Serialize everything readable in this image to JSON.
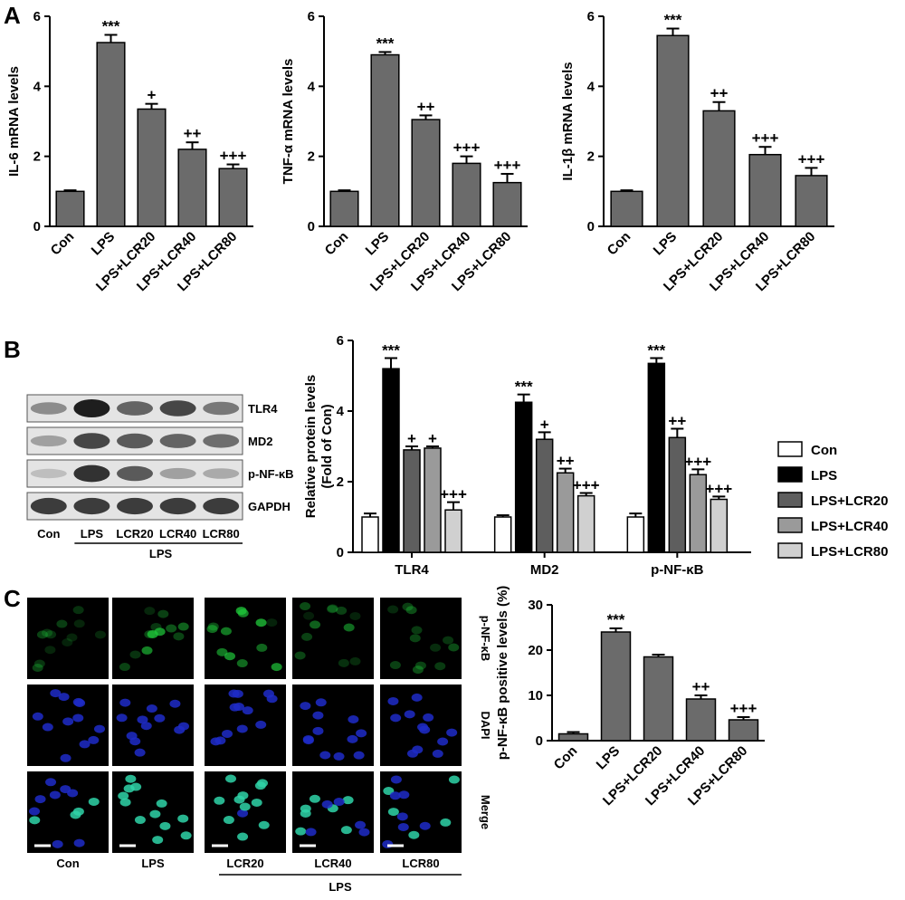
{
  "panel_labels": [
    "A",
    "B",
    "C"
  ],
  "colors": {
    "bar": "#6b6b6b",
    "dark": "#000000",
    "mid": "#5e5e5e",
    "light": "#9a9a9a",
    "lighter": "#d0d0d0",
    "white": "#ffffff",
    "green": "#1fc83a",
    "blue": "#1f2cc8"
  },
  "chart_data": [
    {
      "type": "bar",
      "ylabel": "IL-6 mRNA levels",
      "categories": [
        "Con",
        "LPS",
        "LPS+LCR20",
        "LPS+LCR40",
        "LPS+LCR80"
      ],
      "values": [
        1.0,
        5.25,
        3.35,
        2.2,
        1.65
      ],
      "errors": [
        0.03,
        0.22,
        0.15,
        0.2,
        0.12
      ],
      "annotations": [
        "",
        "***",
        "+",
        "++",
        "+++"
      ],
      "ylim": [
        0,
        6
      ],
      "yticks": [
        0,
        2,
        4,
        6
      ]
    },
    {
      "type": "bar",
      "ylabel": "TNF-α mRNA levels",
      "categories": [
        "Con",
        "LPS",
        "LPS+LCR20",
        "LPS+LCR40",
        "LPS+LCR80"
      ],
      "values": [
        1.0,
        4.9,
        3.05,
        1.8,
        1.25
      ],
      "errors": [
        0.03,
        0.08,
        0.12,
        0.2,
        0.25
      ],
      "annotations": [
        "",
        "***",
        "++",
        "+++",
        "+++"
      ],
      "ylim": [
        0,
        6
      ],
      "yticks": [
        0,
        2,
        4,
        6
      ]
    },
    {
      "type": "bar",
      "ylabel": "IL-1β mRNA levels",
      "categories": [
        "Con",
        "LPS",
        "LPS+LCR20",
        "LPS+LCR40",
        "LPS+LCR80"
      ],
      "values": [
        1.0,
        5.45,
        3.3,
        2.05,
        1.45
      ],
      "errors": [
        0.03,
        0.2,
        0.25,
        0.22,
        0.22
      ],
      "annotations": [
        "",
        "***",
        "++",
        "+++",
        "+++"
      ],
      "ylim": [
        0,
        6
      ],
      "yticks": [
        0,
        2,
        4,
        6
      ]
    },
    {
      "type": "bar",
      "ylabel": "Relative protein levels (Fold of Con)",
      "ylabel_lines": [
        "Relative protein levels",
        "(Fold of Con)"
      ],
      "categories": [
        "TLR4",
        "MD2",
        "p-NF-κB"
      ],
      "series": [
        {
          "name": "Con",
          "values": [
            1.0,
            1.0,
            1.0
          ],
          "errors": [
            0.1,
            0.05,
            0.1
          ],
          "annotations": [
            "",
            "",
            ""
          ]
        },
        {
          "name": "LPS",
          "values": [
            5.2,
            4.25,
            5.35
          ],
          "errors": [
            0.3,
            0.22,
            0.15
          ],
          "annotations": [
            "***",
            "***",
            "***"
          ]
        },
        {
          "name": "LPS+LCR20",
          "values": [
            2.9,
            3.2,
            3.25
          ],
          "errors": [
            0.1,
            0.2,
            0.25
          ],
          "annotations": [
            "+",
            "+",
            "++"
          ]
        },
        {
          "name": "LPS+LCR40",
          "values": [
            2.95,
            2.25,
            2.2
          ],
          "errors": [
            0.05,
            0.12,
            0.15
          ],
          "annotations": [
            "+",
            "++",
            "+++"
          ]
        },
        {
          "name": "LPS+LCR80",
          "values": [
            1.2,
            1.6,
            1.5
          ],
          "errors": [
            0.22,
            0.08,
            0.08
          ],
          "annotations": [
            "+++",
            "+++",
            "+++"
          ]
        }
      ],
      "ylim": [
        0,
        6
      ],
      "yticks": [
        0,
        2,
        4,
        6
      ],
      "legend": "right"
    },
    {
      "type": "bar",
      "ylabel": "p-NF-κB positive levels (%)",
      "categories": [
        "Con",
        "LPS",
        "LPS+LCR20",
        "LPS+LCR40",
        "LPS+LCR80"
      ],
      "values": [
        1.5,
        24.0,
        18.5,
        9.2,
        4.6
      ],
      "errors": [
        0.4,
        0.8,
        0.5,
        0.8,
        0.6
      ],
      "annotations": [
        "",
        "***",
        "",
        "++",
        "+++"
      ],
      "ylim": [
        0,
        30
      ],
      "yticks": [
        0,
        10,
        20,
        30
      ]
    }
  ],
  "blot": {
    "rows": [
      "TLR4",
      "MD2",
      "p-NF-κB",
      "GAPDH"
    ],
    "lanes": [
      "Con",
      "LPS",
      "LCR20",
      "LCR40",
      "LCR80"
    ],
    "group_label": "LPS",
    "intensity": [
      [
        0.45,
        1.0,
        0.65,
        0.8,
        0.55
      ],
      [
        0.35,
        0.8,
        0.7,
        0.65,
        0.6
      ],
      [
        0.2,
        0.9,
        0.7,
        0.35,
        0.3
      ],
      [
        0.85,
        0.85,
        0.85,
        0.85,
        0.85
      ]
    ]
  },
  "micro": {
    "rows": [
      "p-NF-κB",
      "DAPI",
      "Merge"
    ],
    "cols": [
      "Con",
      "LPS",
      "LCR20",
      "LCR40",
      "LCR80"
    ],
    "group_label": "LPS",
    "green_level": [
      0.25,
      1.0,
      0.85,
      0.55,
      0.35
    ]
  }
}
